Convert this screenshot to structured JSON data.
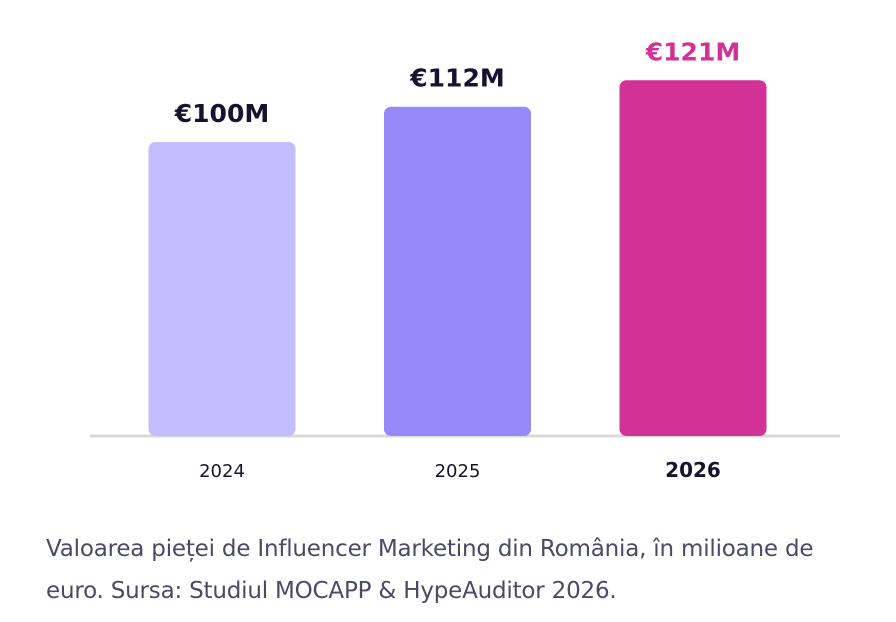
{
  "chart_data": {
    "type": "bar",
    "categories": [
      "2024",
      "2025",
      "2026"
    ],
    "values": [
      100,
      112,
      121
    ],
    "value_labels": [
      "€100M",
      "€112M",
      "€121M"
    ],
    "unit": "M EUR",
    "colors": [
      "#c3bdfd",
      "#9889fa",
      "#d23295"
    ],
    "label_colors": [
      "#16132e",
      "#16132e",
      "#d23295"
    ],
    "highlight_index": 2,
    "axis_color": "#d9d9d9",
    "grid": false
  },
  "caption": "Valoarea pieței de Influencer Marketing din România, în milioane de euro. Sursa: Studiul MOCAPP & HypeAuditor 2026."
}
